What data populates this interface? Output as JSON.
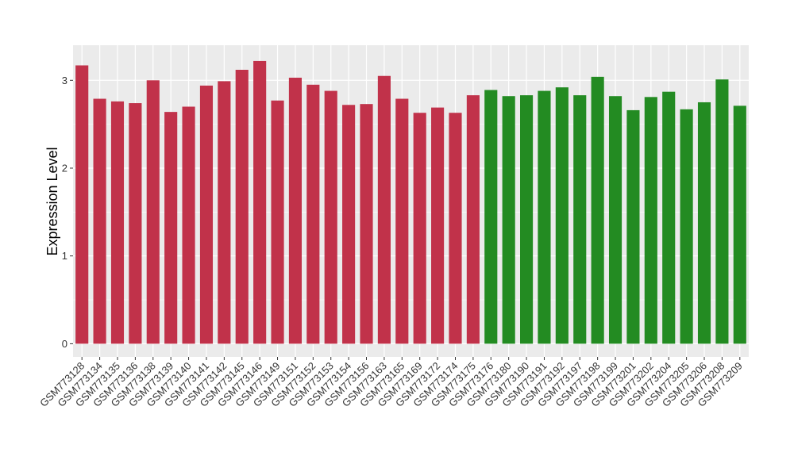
{
  "chart_data": {
    "type": "bar",
    "title": "",
    "xlabel": "",
    "ylabel": "Expression Level",
    "ylim": [
      -0.15,
      3.4
    ],
    "yticks": [
      0,
      1,
      2,
      3
    ],
    "grid": true,
    "legend": "none",
    "colors": {
      "group1": "#c1324a",
      "group2": "#238b22",
      "panel": "#ebebeb",
      "gridline": "#ffffff"
    },
    "categories": [
      "GSM773128",
      "GSM773134",
      "GSM773135",
      "GSM773136",
      "GSM773138",
      "GSM773139",
      "GSM773140",
      "GSM773141",
      "GSM773142",
      "GSM773145",
      "GSM773146",
      "GSM773149",
      "GSM773151",
      "GSM773152",
      "GSM773153",
      "GSM773154",
      "GSM773156",
      "GSM773163",
      "GSM773165",
      "GSM773169",
      "GSM773172",
      "GSM773174",
      "GSM773175",
      "GSM773176",
      "GSM773180",
      "GSM773190",
      "GSM773191",
      "GSM773192",
      "GSM773197",
      "GSM773198",
      "GSM773199",
      "GSM773201",
      "GSM773202",
      "GSM773204",
      "GSM773205",
      "GSM773206",
      "GSM773208",
      "GSM773209"
    ],
    "values": [
      3.17,
      2.79,
      2.76,
      2.74,
      3.0,
      2.64,
      2.7,
      2.94,
      2.99,
      3.12,
      3.22,
      2.77,
      3.03,
      2.95,
      2.88,
      2.72,
      2.73,
      3.05,
      2.79,
      2.63,
      2.69,
      2.63,
      2.83,
      2.89,
      2.82,
      2.83,
      2.88,
      2.92,
      2.83,
      3.04,
      2.82,
      2.66,
      2.81,
      2.87,
      2.67,
      2.75,
      3.01,
      2.71
    ],
    "groups": [
      1,
      1,
      1,
      1,
      1,
      1,
      1,
      1,
      1,
      1,
      1,
      1,
      1,
      1,
      1,
      1,
      1,
      1,
      1,
      1,
      1,
      1,
      1,
      2,
      2,
      2,
      2,
      2,
      2,
      2,
      2,
      2,
      2,
      2,
      2,
      2,
      2,
      2
    ]
  }
}
